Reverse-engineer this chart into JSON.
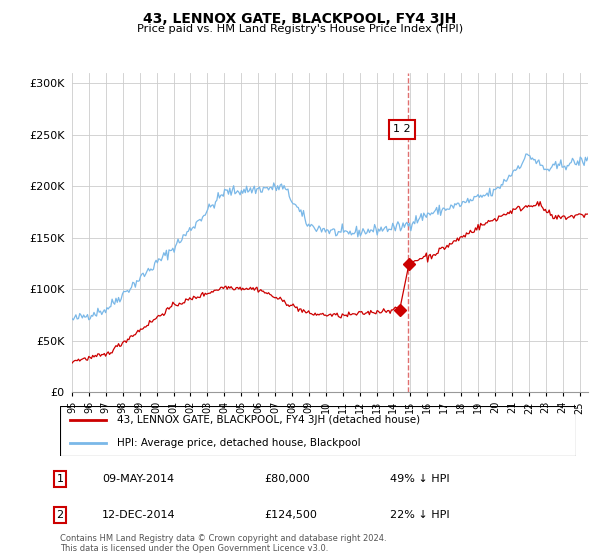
{
  "title": "43, LENNOX GATE, BLACKPOOL, FY4 3JH",
  "subtitle": "Price paid vs. HM Land Registry's House Price Index (HPI)",
  "footer": "Contains HM Land Registry data © Crown copyright and database right 2024.\nThis data is licensed under the Open Government Licence v3.0.",
  "legend_line1": "43, LENNOX GATE, BLACKPOOL, FY4 3JH (detached house)",
  "legend_line2": "HPI: Average price, detached house, Blackpool",
  "transaction1_date": "09-MAY-2014",
  "transaction1_price": "£80,000",
  "transaction1_hpi": "49% ↓ HPI",
  "transaction2_date": "12-DEC-2014",
  "transaction2_price": "£124,500",
  "transaction2_hpi": "22% ↓ HPI",
  "hpi_color": "#7ab8e8",
  "price_color": "#cc0000",
  "dashed_line_color": "#e07070",
  "background_color": "#ffffff",
  "grid_color": "#cccccc",
  "ylim": [
    0,
    310000
  ],
  "yticks": [
    0,
    50000,
    100000,
    150000,
    200000,
    250000,
    300000
  ],
  "xlim_start": 1995.0,
  "xlim_end": 2025.5,
  "t1_year": 2014.37,
  "t1_price": 80000,
  "t2_year": 2014.92,
  "t2_price": 124500,
  "dashed_x": 2014.85
}
